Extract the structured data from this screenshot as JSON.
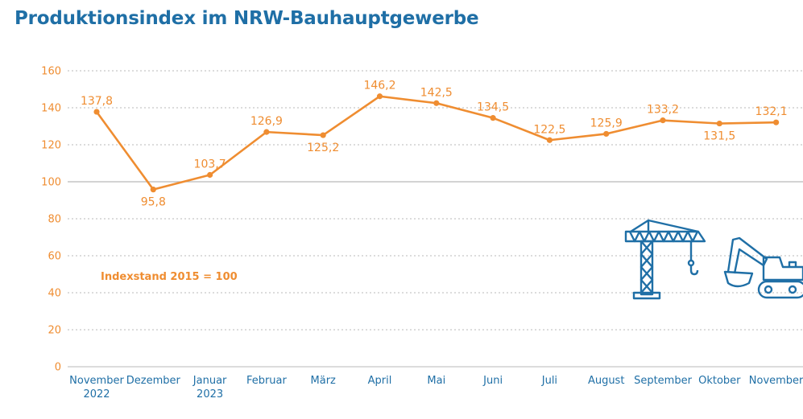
{
  "title": "Produktionsindex im NRW-Bauhauptgewerbe",
  "chart_data": {
    "type": "line",
    "title": "Produktionsindex im NRW-Bauhauptgewerbe",
    "xlabel": "",
    "ylabel": "",
    "categories": [
      [
        "November",
        "2022"
      ],
      [
        "Dezember"
      ],
      [
        "Januar",
        "2023"
      ],
      [
        "Februar"
      ],
      [
        "März"
      ],
      [
        "April"
      ],
      [
        "Mai"
      ],
      [
        "Juni"
      ],
      [
        "Juli"
      ],
      [
        "August"
      ],
      [
        "September"
      ],
      [
        "Oktober"
      ],
      [
        "November"
      ]
    ],
    "series": [
      {
        "values": [
          137.8,
          95.8,
          103.7,
          126.9,
          125.2,
          146.2,
          142.5,
          134.5,
          122.5,
          125.9,
          133.2,
          131.5,
          132.1
        ],
        "labels": [
          "137,8",
          "95,8",
          "103,7",
          "126,9",
          "125,2",
          "146,2",
          "142,5",
          "134,5",
          "122,5",
          "125,9",
          "133,2",
          "131,5",
          "132,1"
        ],
        "label_position": [
          "above",
          "below",
          "above",
          "above",
          "below",
          "above",
          "above",
          "above",
          "above",
          "above",
          "above",
          "below",
          "above"
        ]
      }
    ],
    "ylim": [
      0,
      160
    ],
    "yticks": [
      0,
      20,
      40,
      60,
      80,
      100,
      120,
      140,
      160
    ],
    "grid": "horizontal-dashed",
    "reference_line": 100,
    "annotation": "Indexstand 2015 = 100",
    "colors": {
      "line": "#ef8d31",
      "axis_labels": "#1f6fa6",
      "grid": "#b9b9b9",
      "icons": "#1f6fa6"
    },
    "decorations": [
      "crane-icon",
      "excavator-icon"
    ]
  }
}
